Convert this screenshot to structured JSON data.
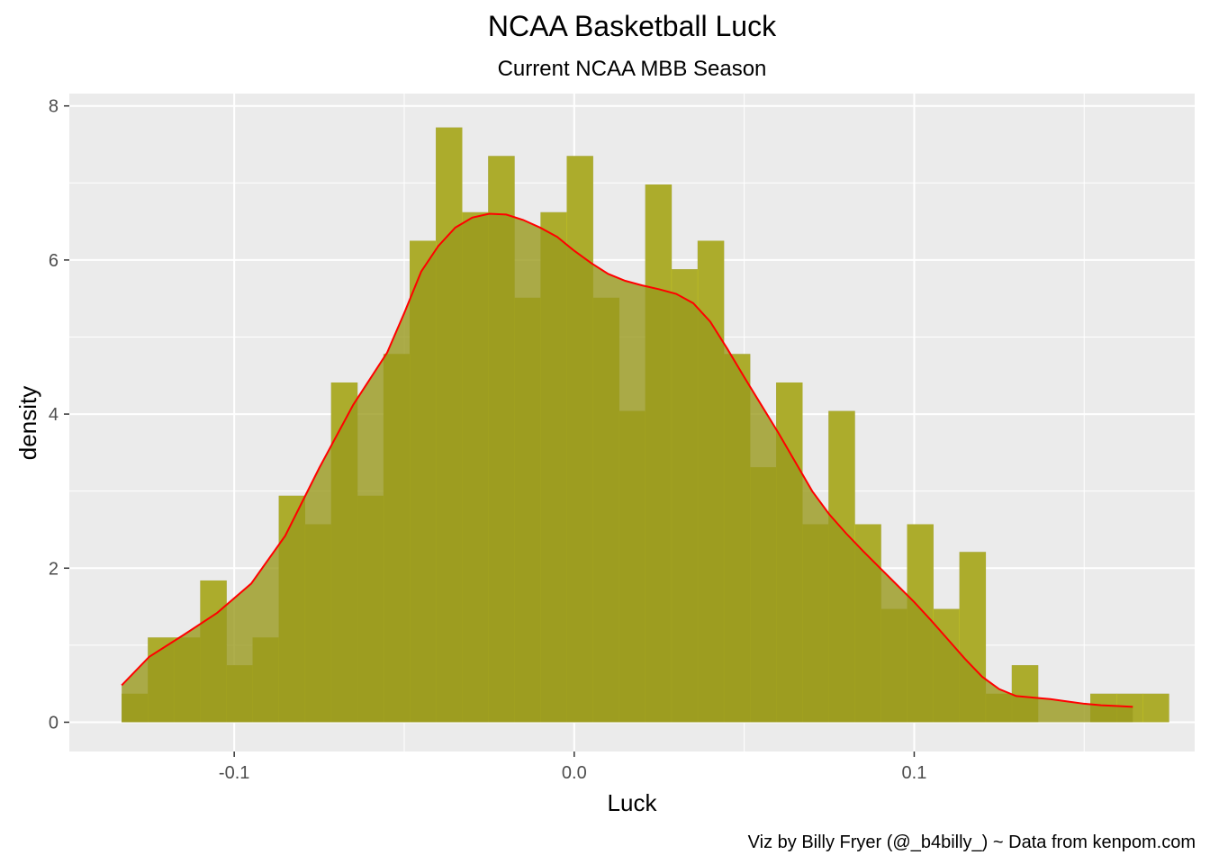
{
  "chart_data": {
    "type": "histogram",
    "title": "NCAA Basketball Luck",
    "subtitle": "Current NCAA MBB Season",
    "xlabel": "Luck",
    "ylabel": "density",
    "caption": "Viz by Billy Fryer (@_b4billy_) ~ Data from kenpom.com",
    "xlim": [
      -0.1485,
      0.1825
    ],
    "ylim": [
      -0.38,
      8.16
    ],
    "x_ticks": [
      {
        "value": -0.1,
        "label": "-0.1"
      },
      {
        "value": 0.0,
        "label": "0.0"
      },
      {
        "value": 0.1,
        "label": "0.1"
      }
    ],
    "y_ticks": [
      {
        "value": 0,
        "label": "0"
      },
      {
        "value": 2,
        "label": "2"
      },
      {
        "value": 4,
        "label": "4"
      },
      {
        "value": 6,
        "label": "6"
      },
      {
        "value": 8,
        "label": "8"
      }
    ],
    "grid": true,
    "colors": {
      "panel": "#ebebeb",
      "grid": "#ffffff",
      "histogram_dark": "#595959",
      "histogram_yellow": "#ffff00",
      "density_fill": "#9a9a1e",
      "density_line": "#ff0000"
    },
    "series": [
      {
        "type": "histogram",
        "bins": [
          {
            "x0": -0.1331,
            "x1": -0.1254,
            "density": 0.37
          },
          {
            "x0": -0.1254,
            "x1": -0.1177,
            "density": 1.1
          },
          {
            "x0": -0.1177,
            "x1": -0.11,
            "density": 1.1
          },
          {
            "x0": -0.11,
            "x1": -0.1023,
            "density": 1.84
          },
          {
            "x0": -0.1023,
            "x1": -0.0946,
            "density": 0.74
          },
          {
            "x0": -0.0946,
            "x1": -0.0869,
            "density": 1.1
          },
          {
            "x0": -0.0869,
            "x1": -0.0792,
            "density": 2.94
          },
          {
            "x0": -0.0792,
            "x1": -0.0715,
            "density": 2.57
          },
          {
            "x0": -0.0715,
            "x1": -0.0638,
            "density": 4.41
          },
          {
            "x0": -0.0638,
            "x1": -0.0561,
            "density": 2.94
          },
          {
            "x0": -0.0561,
            "x1": -0.0484,
            "density": 4.78
          },
          {
            "x0": -0.0484,
            "x1": -0.0407,
            "density": 6.25
          },
          {
            "x0": -0.0407,
            "x1": -0.033,
            "density": 7.72
          },
          {
            "x0": -0.033,
            "x1": -0.0253,
            "density": 6.62
          },
          {
            "x0": -0.0253,
            "x1": -0.0176,
            "density": 7.35
          },
          {
            "x0": -0.0176,
            "x1": -0.0099,
            "density": 5.51
          },
          {
            "x0": -0.0099,
            "x1": -0.0022,
            "density": 6.62
          },
          {
            "x0": -0.0022,
            "x1": 0.0055,
            "density": 7.35
          },
          {
            "x0": 0.0055,
            "x1": 0.0132,
            "density": 5.51
          },
          {
            "x0": 0.0132,
            "x1": 0.0209,
            "density": 4.04
          },
          {
            "x0": 0.0209,
            "x1": 0.0286,
            "density": 6.98
          },
          {
            "x0": 0.0286,
            "x1": 0.0363,
            "density": 5.88
          },
          {
            "x0": 0.0363,
            "x1": 0.044,
            "density": 6.25
          },
          {
            "x0": 0.044,
            "x1": 0.0517,
            "density": 4.78
          },
          {
            "x0": 0.0517,
            "x1": 0.0594,
            "density": 3.31
          },
          {
            "x0": 0.0594,
            "x1": 0.0671,
            "density": 4.41
          },
          {
            "x0": 0.0671,
            "x1": 0.0748,
            "density": 2.57
          },
          {
            "x0": 0.0748,
            "x1": 0.0825,
            "density": 4.04
          },
          {
            "x0": 0.0825,
            "x1": 0.0902,
            "density": 2.57
          },
          {
            "x0": 0.0902,
            "x1": 0.0979,
            "density": 1.47
          },
          {
            "x0": 0.0979,
            "x1": 0.1056,
            "density": 2.57
          },
          {
            "x0": 0.1056,
            "x1": 0.1133,
            "density": 1.47
          },
          {
            "x0": 0.1133,
            "x1": 0.121,
            "density": 2.21
          },
          {
            "x0": 0.121,
            "x1": 0.1287,
            "density": 0.37
          },
          {
            "x0": 0.1287,
            "x1": 0.1364,
            "density": 0.74
          },
          {
            "x0": 0.1364,
            "x1": 0.1441,
            "density": 0.0
          },
          {
            "x0": 0.1441,
            "x1": 0.1518,
            "density": 0.0
          },
          {
            "x0": 0.1518,
            "x1": 0.1595,
            "density": 0.37
          },
          {
            "x0": 0.1595,
            "x1": 0.1672,
            "density": 0.37
          },
          {
            "x0": 0.1672,
            "x1": 0.1749,
            "density": 0.37
          }
        ]
      },
      {
        "type": "density",
        "x": [
          -0.1331,
          -0.125,
          -0.115,
          -0.105,
          -0.095,
          -0.085,
          -0.075,
          -0.065,
          -0.055,
          -0.05,
          -0.045,
          -0.04,
          -0.035,
          -0.03,
          -0.025,
          -0.02,
          -0.015,
          -0.01,
          -0.005,
          0.0,
          0.005,
          0.01,
          0.015,
          0.02,
          0.025,
          0.03,
          0.035,
          0.04,
          0.045,
          0.05,
          0.055,
          0.06,
          0.065,
          0.07,
          0.075,
          0.08,
          0.085,
          0.09,
          0.095,
          0.1,
          0.105,
          0.11,
          0.115,
          0.12,
          0.125,
          0.13,
          0.135,
          0.14,
          0.145,
          0.15,
          0.155,
          0.16,
          0.1643
        ],
        "y": [
          0.48,
          0.85,
          1.13,
          1.42,
          1.8,
          2.42,
          3.3,
          4.12,
          4.8,
          5.31,
          5.85,
          6.18,
          6.42,
          6.55,
          6.6,
          6.59,
          6.52,
          6.42,
          6.3,
          6.12,
          5.96,
          5.82,
          5.73,
          5.67,
          5.62,
          5.56,
          5.44,
          5.2,
          4.85,
          4.48,
          4.12,
          3.76,
          3.38,
          3.0,
          2.7,
          2.45,
          2.22,
          2.0,
          1.78,
          1.56,
          1.32,
          1.07,
          0.82,
          0.59,
          0.43,
          0.34,
          0.32,
          0.3,
          0.27,
          0.24,
          0.22,
          0.21,
          0.2
        ]
      }
    ]
  }
}
